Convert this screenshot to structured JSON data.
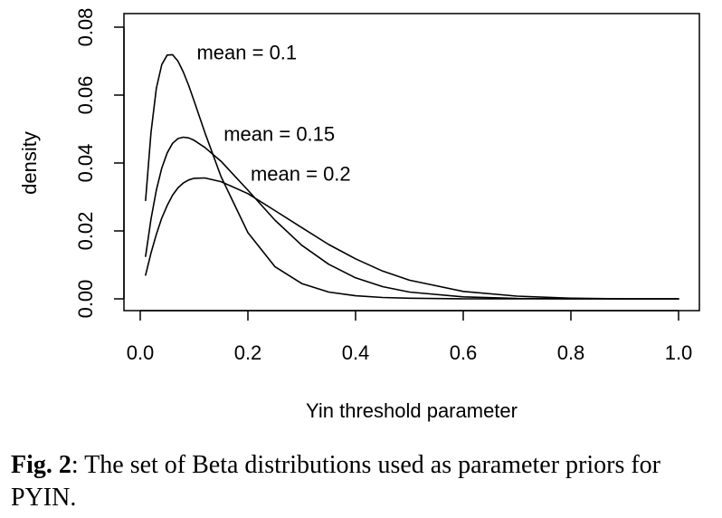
{
  "chart_data": {
    "type": "line",
    "title": "",
    "xlabel": "Yin threshold parameter",
    "ylabel": "density",
    "xlim": [
      0.0,
      1.0
    ],
    "ylim": [
      0.0,
      0.08
    ],
    "xticks": [
      "0.0",
      "0.2",
      "0.4",
      "0.6",
      "0.8",
      "1.0"
    ],
    "yticks": [
      "0.00",
      "0.02",
      "0.04",
      "0.06",
      "0.08"
    ],
    "grid": false,
    "legend": "none",
    "line_color": "#000000",
    "x": [
      0.01,
      0.02,
      0.03,
      0.04,
      0.05,
      0.06,
      0.07,
      0.08,
      0.09,
      0.1,
      0.12,
      0.15,
      0.2,
      0.25,
      0.3,
      0.35,
      0.4,
      0.45,
      0.5,
      0.6,
      0.7,
      0.8,
      0.9,
      1.0
    ],
    "series": [
      {
        "values": [
          0.029,
          0.049,
          0.062,
          0.069,
          0.0718,
          0.0719,
          0.07,
          0.0668,
          0.0628,
          0.0583,
          0.049,
          0.036,
          0.0195,
          0.0095,
          0.0045,
          0.002,
          0.0009,
          0.0004,
          0.0002,
          0.0,
          0.0,
          0.0,
          0.0,
          0.0
        ]
      },
      {
        "values": [
          0.0125,
          0.0235,
          0.032,
          0.0385,
          0.043,
          0.0458,
          0.0472,
          0.0476,
          0.0474,
          0.0467,
          0.0446,
          0.0405,
          0.032,
          0.0232,
          0.0158,
          0.0102,
          0.0062,
          0.0036,
          0.002,
          0.0006,
          0.0001,
          0.0,
          0.0,
          0.0
        ]
      },
      {
        "values": [
          0.007,
          0.0135,
          0.019,
          0.0238,
          0.0275,
          0.0305,
          0.0327,
          0.0341,
          0.035,
          0.0355,
          0.0356,
          0.0345,
          0.031,
          0.026,
          0.021,
          0.016,
          0.0118,
          0.0082,
          0.0055,
          0.0022,
          0.0008,
          0.0002,
          0.0,
          0.0
        ]
      }
    ],
    "annotations": [
      {
        "text": "mean = 0.1",
        "x": 0.105,
        "y": 0.0705
      },
      {
        "text": "mean = 0.15",
        "x": 0.155,
        "y": 0.0465
      },
      {
        "text": "mean = 0.2",
        "x": 0.205,
        "y": 0.0348
      }
    ]
  },
  "caption": {
    "label": "Fig. 2",
    "text": ": The set of Beta distributions used as parameter priors for PYIN."
  }
}
